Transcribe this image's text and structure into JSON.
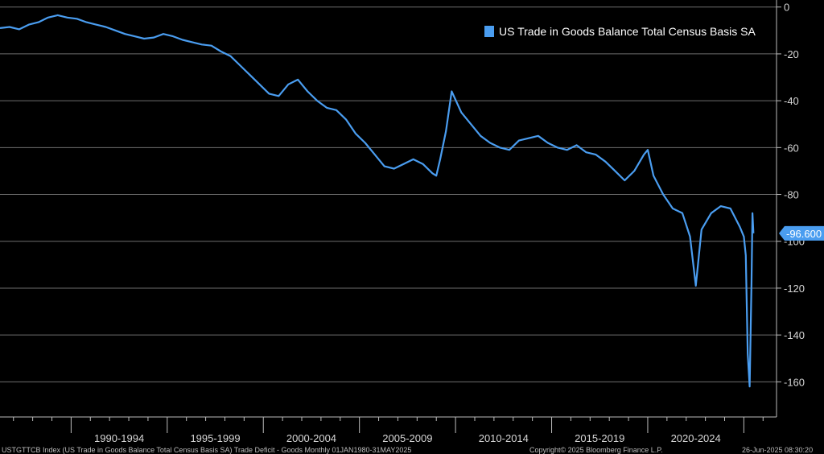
{
  "chart_data": {
    "type": "line",
    "title": "",
    "xlabel": "",
    "ylabel": "",
    "ylim": [
      -175,
      3
    ],
    "xlim": [
      1986.3,
      2026.7
    ],
    "y_ticks": [
      0,
      -20,
      -40,
      -60,
      -80,
      -100,
      -120,
      -140,
      -160
    ],
    "y_tick_labels": [
      "0",
      "-20",
      "-40",
      "-60",
      "-80",
      "-100",
      "-120",
      "-140",
      "-160"
    ],
    "x_period_labels": [
      "1990-1994",
      "1995-1999",
      "2000-2004",
      "2005-2009",
      "2010-2014",
      "2015-2019",
      "2020-2024"
    ],
    "x_period_starts": [
      1990,
      1995,
      2000,
      2005,
      2010,
      2015,
      2020
    ],
    "grid": true,
    "legend_position": "top-right",
    "series": [
      {
        "name": "US Trade in Goods Balance Total Census Basis SA",
        "color": "#4a9df0",
        "points": [
          [
            1986.3,
            -9
          ],
          [
            1986.8,
            -8.5
          ],
          [
            1987.3,
            -9.5
          ],
          [
            1987.8,
            -7.5
          ],
          [
            1988.3,
            -6.5
          ],
          [
            1988.8,
            -4.5
          ],
          [
            1989.3,
            -3.5
          ],
          [
            1989.8,
            -4.5
          ],
          [
            1990.3,
            -5
          ],
          [
            1990.8,
            -6.5
          ],
          [
            1991.3,
            -7.5
          ],
          [
            1991.8,
            -8.5
          ],
          [
            1992.3,
            -10
          ],
          [
            1992.8,
            -11.5
          ],
          [
            1993.3,
            -12.5
          ],
          [
            1993.8,
            -13.5
          ],
          [
            1994.3,
            -13
          ],
          [
            1994.8,
            -11.5
          ],
          [
            1995.3,
            -12.5
          ],
          [
            1995.8,
            -14
          ],
          [
            1996.3,
            -15
          ],
          [
            1996.8,
            -16
          ],
          [
            1997.3,
            -16.5
          ],
          [
            1997.8,
            -19
          ],
          [
            1998.3,
            -21
          ],
          [
            1998.8,
            -25
          ],
          [
            1999.3,
            -29
          ],
          [
            1999.8,
            -33
          ],
          [
            2000.3,
            -37
          ],
          [
            2000.8,
            -38
          ],
          [
            2001.3,
            -33
          ],
          [
            2001.8,
            -31
          ],
          [
            2002.3,
            -36
          ],
          [
            2002.8,
            -40
          ],
          [
            2003.3,
            -43
          ],
          [
            2003.8,
            -44
          ],
          [
            2004.3,
            -48
          ],
          [
            2004.8,
            -54
          ],
          [
            2005.3,
            -58
          ],
          [
            2005.8,
            -63
          ],
          [
            2006.3,
            -68
          ],
          [
            2006.8,
            -69
          ],
          [
            2007.3,
            -67
          ],
          [
            2007.8,
            -65
          ],
          [
            2008.3,
            -67
          ],
          [
            2008.8,
            -71
          ],
          [
            2009.0,
            -72
          ],
          [
            2009.2,
            -65
          ],
          [
            2009.5,
            -53
          ],
          [
            2009.8,
            -36
          ],
          [
            2010.3,
            -45
          ],
          [
            2010.8,
            -50
          ],
          [
            2011.3,
            -55
          ],
          [
            2011.8,
            -58
          ],
          [
            2012.3,
            -60
          ],
          [
            2012.8,
            -61
          ],
          [
            2013.3,
            -57
          ],
          [
            2013.8,
            -56
          ],
          [
            2014.3,
            -55
          ],
          [
            2014.8,
            -58
          ],
          [
            2015.3,
            -60
          ],
          [
            2015.8,
            -61
          ],
          [
            2016.3,
            -59
          ],
          [
            2016.8,
            -62
          ],
          [
            2017.3,
            -63
          ],
          [
            2017.8,
            -66
          ],
          [
            2018.3,
            -70
          ],
          [
            2018.8,
            -74
          ],
          [
            2019.3,
            -70
          ],
          [
            2019.8,
            -63
          ],
          [
            2020.0,
            -61
          ],
          [
            2020.3,
            -72
          ],
          [
            2020.8,
            -80
          ],
          [
            2021.3,
            -86
          ],
          [
            2021.8,
            -88
          ],
          [
            2022.2,
            -98
          ],
          [
            2022.5,
            -119
          ],
          [
            2022.8,
            -95
          ],
          [
            2023.3,
            -88
          ],
          [
            2023.8,
            -85
          ],
          [
            2024.3,
            -86
          ],
          [
            2024.8,
            -94
          ],
          [
            2025.0,
            -98
          ],
          [
            2025.1,
            -106
          ],
          [
            2025.2,
            -148
          ],
          [
            2025.3,
            -162
          ],
          [
            2025.4,
            -118
          ],
          [
            2025.45,
            -88
          ],
          [
            2025.5,
            -96.6
          ]
        ]
      }
    ],
    "last_value_label": "-96.600",
    "footer_left": "USTGTTCB Index (US Trade in Goods Balance Total Census Basis SA) Trade Deficit - Goods  Monthly 01JAN1980-31MAY2025",
    "footer_middle": "Copyright© 2025 Bloomberg Finance L.P.",
    "footer_right": "26-Jun-2025 08:30:20"
  }
}
